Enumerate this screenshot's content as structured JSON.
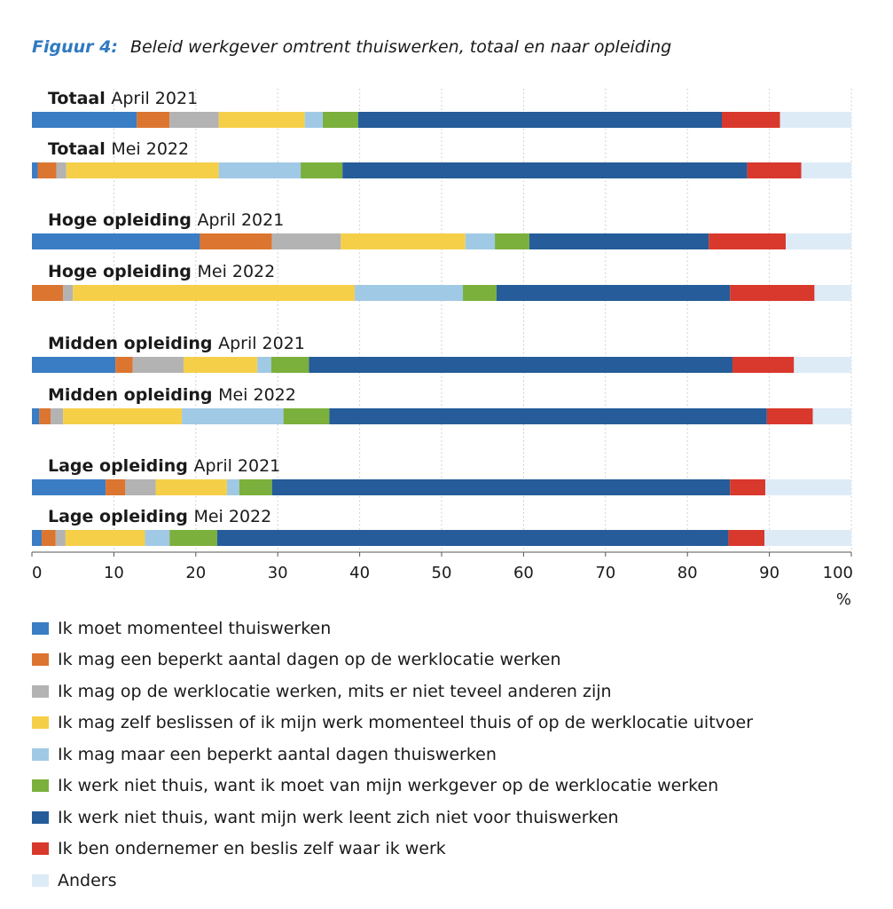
{
  "figure": {
    "label": "Figuur 4:",
    "title": "Beleid werkgever omtrent thuiswerken, totaal en naar opleiding"
  },
  "chart_data": {
    "type": "bar",
    "orientation": "horizontal",
    "stacked": true,
    "title": "Beleid werkgever omtrent thuiswerken, totaal en naar opleiding",
    "xlabel": "%",
    "xlim": [
      0,
      100
    ],
    "xticks": [
      0,
      10,
      20,
      30,
      40,
      50,
      60,
      70,
      80,
      90,
      100
    ],
    "grid": "vertical dotted",
    "legend_position": "bottom",
    "categories": [
      {
        "bold": "Totaal",
        "rest": "April 2021"
      },
      {
        "bold": "Totaal",
        "rest": "Mei 2022"
      },
      {
        "bold": "Hoge opleiding",
        "rest": "April 2021"
      },
      {
        "bold": "Hoge opleiding",
        "rest": "Mei 2022"
      },
      {
        "bold": "Midden opleiding",
        "rest": "April 2021"
      },
      {
        "bold": "Midden opleiding",
        "rest": "Mei 2022"
      },
      {
        "bold": "Lage opleiding",
        "rest": "April 2021"
      },
      {
        "bold": "Lage opleiding",
        "rest": "Mei 2022"
      }
    ],
    "series": [
      {
        "name": "Ik moet momenteel thuiswerken",
        "color": "#3a7dc4",
        "values": [
          12.8,
          0.7,
          20.5,
          0.0,
          10.2,
          0.9,
          9.0,
          1.2
        ]
      },
      {
        "name": "Ik mag een beperkt aantal dagen op de werklocatie werken",
        "color": "#dc7530",
        "values": [
          4.0,
          2.3,
          8.8,
          3.8,
          2.1,
          1.4,
          2.4,
          1.7
        ]
      },
      {
        "name": "Ik mag op de werklocatie werken, mits er niet teveel anderen zijn",
        "color": "#b3b3b3",
        "values": [
          6.0,
          1.2,
          8.4,
          1.2,
          6.2,
          1.5,
          3.7,
          1.2
        ]
      },
      {
        "name": "Ik mag zelf beslissen of ik mijn werk momenteel thuis of op de werklocatie uitvoer",
        "color": "#f6cf49",
        "values": [
          10.5,
          18.6,
          15.2,
          34.4,
          9.0,
          14.5,
          8.7,
          9.7
        ]
      },
      {
        "name": "Ik mag maar een beperkt aantal dagen thuiswerken",
        "color": "#a0c9e6",
        "values": [
          2.2,
          10.0,
          3.6,
          13.2,
          1.7,
          12.4,
          1.5,
          3.0
        ]
      },
      {
        "name": "Ik werk niet thuis, want ik moet van mijn werkgever op de werklocatie werken",
        "color": "#7bb03c",
        "values": [
          4.3,
          5.1,
          4.2,
          4.1,
          4.6,
          5.6,
          4.0,
          5.8
        ]
      },
      {
        "name": "Ik werk niet thuis, want mijn werk leent zich niet voor thuiswerken",
        "color": "#255c99",
        "values": [
          44.4,
          49.4,
          21.9,
          28.5,
          51.7,
          53.4,
          55.9,
          62.4
        ]
      },
      {
        "name": "Ik ben ondernemer en beslis zelf waar ik werk",
        "color": "#d9382c",
        "values": [
          7.1,
          6.6,
          9.4,
          10.3,
          7.5,
          5.6,
          4.3,
          4.4
        ]
      },
      {
        "name": "Anders",
        "color": "#ddebf7",
        "values": [
          8.7,
          6.1,
          8.0,
          4.5,
          7.0,
          4.7,
          10.5,
          10.6
        ]
      }
    ]
  }
}
